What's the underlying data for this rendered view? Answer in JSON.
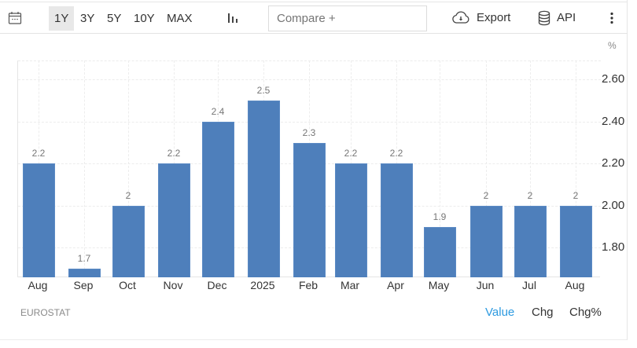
{
  "toolbar": {
    "calendar_icon": "calendar-icon",
    "ranges": [
      {
        "label": "1Y",
        "active": true
      },
      {
        "label": "3Y",
        "active": false
      },
      {
        "label": "5Y",
        "active": false
      },
      {
        "label": "10Y",
        "active": false
      },
      {
        "label": "MAX",
        "active": false
      }
    ],
    "chart_type_icon": "bar-chart-icon",
    "compare_placeholder": "Compare +",
    "export_label": "Export",
    "export_icon": "cloud-download-icon",
    "api_label": "API",
    "api_icon": "database-icon",
    "more_icon": "vertical-ellipsis-icon"
  },
  "chart": {
    "unit": "%",
    "source": "EUROSTAT",
    "bar_color": "#4e7fbb",
    "modes": [
      {
        "label": "Value",
        "active": true
      },
      {
        "label": "Chg",
        "active": false
      },
      {
        "label": "Chg%",
        "active": false
      }
    ],
    "active_mode_color": "#2d9ae0"
  },
  "chart_data": {
    "type": "bar",
    "title": "",
    "xlabel": "",
    "ylabel": "%",
    "categories": [
      "Aug",
      "Sep",
      "Oct",
      "Nov",
      "Dec",
      "2025",
      "Feb",
      "Mar",
      "Apr",
      "May",
      "Jun",
      "Jul",
      "Aug"
    ],
    "values": [
      2.2,
      1.7,
      2.0,
      2.2,
      2.4,
      2.5,
      2.3,
      2.2,
      2.2,
      1.9,
      2.0,
      2.0,
      2.0
    ],
    "value_labels": [
      "2.2",
      "1.7",
      "2",
      "2.2",
      "2.4",
      "2.5",
      "2.3",
      "2.2",
      "2.2",
      "1.9",
      "2",
      "2",
      "2"
    ],
    "yticks": [
      "2.60",
      "2.40",
      "2.20",
      "2.00",
      "1.80"
    ],
    "ylim": [
      1.66,
      2.69
    ],
    "y_axis_position": "right",
    "grid": true,
    "legend": null
  }
}
